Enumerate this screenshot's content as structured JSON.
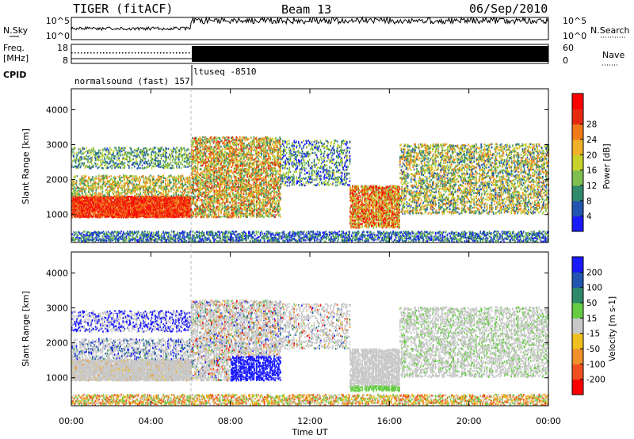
{
  "header": {
    "radar": "TIGER (fitACF)",
    "beam": "Beam 13",
    "date": "06/Sep/2010"
  },
  "strip_labels": {
    "nsky": "N.Sky",
    "freq": "Freq.",
    "freq_unit": "[MHz]",
    "cpid": "CPID",
    "nsearch": "N.Search",
    "nave": "Nave"
  },
  "strip_ticks": {
    "noise_top": "10^5",
    "noise_bottom": "10^0",
    "freq_top": "18",
    "freq_bottom": "8",
    "nave_top": "60",
    "nave_bottom": "0"
  },
  "cpid_labels": {
    "first": "normalsound (fast) 157",
    "second": "ltuseq -8510"
  },
  "chart_data": [
    {
      "type": "heatmap",
      "name_shown": "Power",
      "ylabel": "Slant Range [km]",
      "xlabel": "",
      "ylim": [
        200,
        4600
      ],
      "yticks": [
        "1000",
        "2000",
        "3000",
        "4000"
      ],
      "colorbar_label": "Power [dB]",
      "colorbar_ticks": [
        "4",
        "8",
        "12",
        "16",
        "20",
        "24",
        "28"
      ],
      "colorbar_colors": [
        "#1a1aff",
        "#2255b0",
        "#2f8a6a",
        "#7fbf4f",
        "#c8d22a",
        "#f0b02a",
        "#f07a1a",
        "#e62a10",
        "#ff0000"
      ],
      "features": [
        {
          "t_start": 0.0,
          "t_end": 6.0,
          "range_low": 900,
          "range_high": 1500,
          "value": "high power"
        },
        {
          "t_start": 14.0,
          "t_end": 16.5,
          "range_low": 600,
          "range_high": 1800,
          "value": "high power"
        }
      ]
    },
    {
      "type": "heatmap",
      "name_shown": "Velocity",
      "ylabel": "Slant Range [km]",
      "xlabel": "Time UT",
      "ylim": [
        200,
        4600
      ],
      "yticks": [
        "1000",
        "2000",
        "3000",
        "4000"
      ],
      "colorbar_label": "Velocity [m s-1]",
      "colorbar_ticks": [
        "200",
        "100",
        "50",
        "15",
        "-15",
        "-50",
        "-100",
        "-200"
      ],
      "colorbar_colors": [
        "#1a1aff",
        "#2255b0",
        "#2f8a6a",
        "#66cc44",
        "#c8c8c8",
        "#f0c020",
        "#f0902a",
        "#f05020",
        "#ff0000"
      ],
      "xticks": [
        "00:00",
        "04:00",
        "08:00",
        "12:00",
        "16:00",
        "20:00",
        "00:00"
      ],
      "features": [
        {
          "t_start": 0.0,
          "t_end": 6.0,
          "range_low": 900,
          "range_high": 1900,
          "value": "ground scatter"
        },
        {
          "t_start": 8.0,
          "t_end": 11.0,
          "range_low": 1200,
          "range_high": 1500,
          "value": "positive velocity"
        },
        {
          "t_start": 15.0,
          "t_end": 16.5,
          "range_low": 500,
          "range_high": 700,
          "value": "positive velocity"
        }
      ]
    }
  ],
  "time_axis": {
    "label": "Time UT",
    "ticks": [
      "00:00",
      "04:00",
      "08:00",
      "12:00",
      "16:00",
      "20:00",
      "00:00"
    ]
  }
}
